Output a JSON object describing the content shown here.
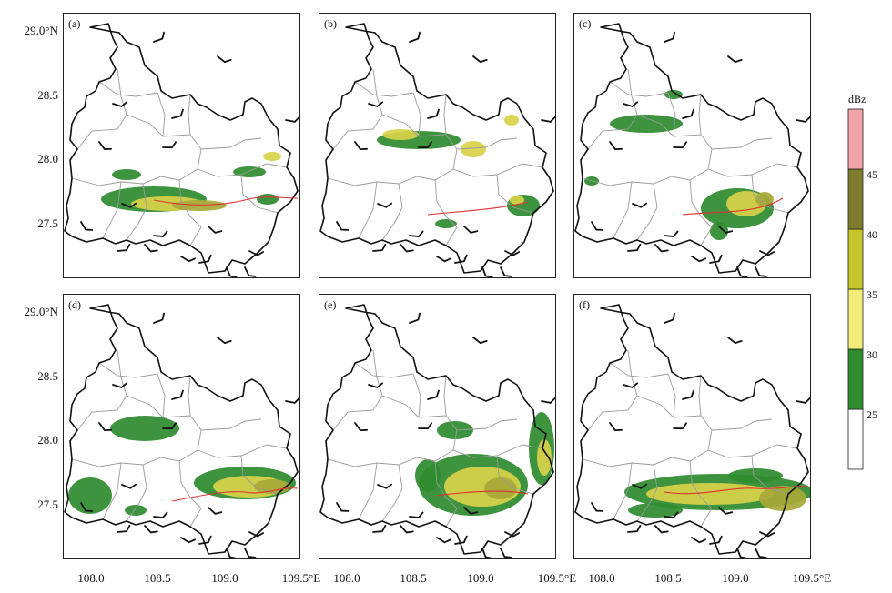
{
  "panels": [
    {
      "id": "a",
      "label": "(a)"
    },
    {
      "id": "b",
      "label": "(b)"
    },
    {
      "id": "c",
      "label": "(c)"
    },
    {
      "id": "d",
      "label": "(d)"
    },
    {
      "id": "e",
      "label": "(e)"
    },
    {
      "id": "f",
      "label": "(f)"
    }
  ],
  "axes": {
    "lat_ticks": [
      "29.0°N",
      "28.5",
      "28.0",
      "27.5"
    ],
    "lon_ticks": [
      "108.0",
      "108.5",
      "109.0",
      "109.5°E"
    ]
  },
  "colorbar": {
    "title": "dBz",
    "levels": [
      {
        "label": "25",
        "color": "#ffffff"
      },
      {
        "label": "30",
        "color": "#2e8b2e"
      },
      {
        "label": "35",
        "color": "#f0ee78"
      },
      {
        "label": "40",
        "color": "#c6c62a"
      },
      {
        "label": "45",
        "color": "#7c7c2c"
      },
      {
        "label": "",
        "color": "#f2a4a8"
      }
    ]
  },
  "colors": {
    "weak_echo": "#2e8b2e",
    "moderate_echo": "#d8d24a",
    "strong_echo": "#a8a838",
    "track": "#d33333"
  }
}
